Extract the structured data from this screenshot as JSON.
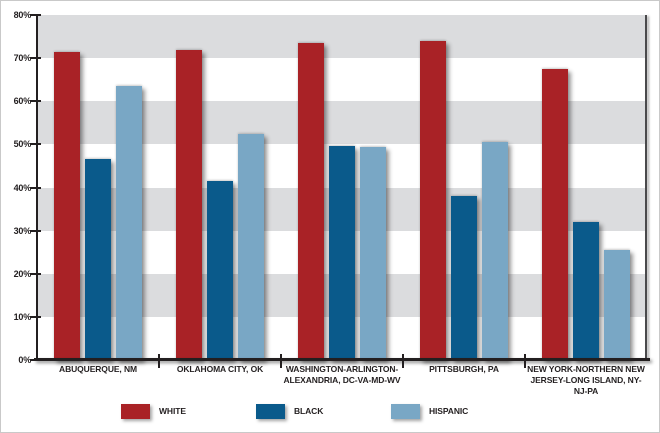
{
  "chart_data": {
    "type": "bar",
    "title": "",
    "categories": [
      "ABUQUERQUE, NM",
      "OKLAHOMA CITY, OK",
      "WASHINGTON-ARLINGTON-\nALEXANDRIA, DC-VA-MD-WV",
      "PITTSBURGH, PA",
      "NEW YORK-NORTHERN NEW\nJERSEY-LONG ISLAND, NY-NJ-PA"
    ],
    "series": [
      {
        "name": "WHITE",
        "color": "#a92226",
        "values": [
          71.5,
          72.0,
          73.5,
          74.0,
          67.5
        ]
      },
      {
        "name": "BLACK",
        "color": "#0a5a8b",
        "values": [
          46.5,
          41.5,
          49.7,
          38.0,
          32.0
        ]
      },
      {
        "name": "HISPANIC",
        "color": "#79a7c5",
        "values": [
          63.5,
          52.5,
          49.3,
          50.5,
          25.5
        ]
      }
    ],
    "xlabel": "",
    "ylabel": "",
    "ylim": [
      0,
      80
    ],
    "ytick_step": 10,
    "ytick_labels": [
      "80%",
      "70%",
      "60%",
      "50%",
      "40%",
      "30%",
      "20%",
      "10%",
      "0%"
    ],
    "legend_position": "bottom",
    "grid": "alternating-horizontal-bands",
    "band_colors": {
      "shaded": "#dbdcde",
      "unshaded": "#ffffff"
    }
  },
  "colors": {
    "axis": "#231f20",
    "right_border": "#4a4a4c",
    "text": "#231f20",
    "outer_border": "#c9c9c9"
  }
}
